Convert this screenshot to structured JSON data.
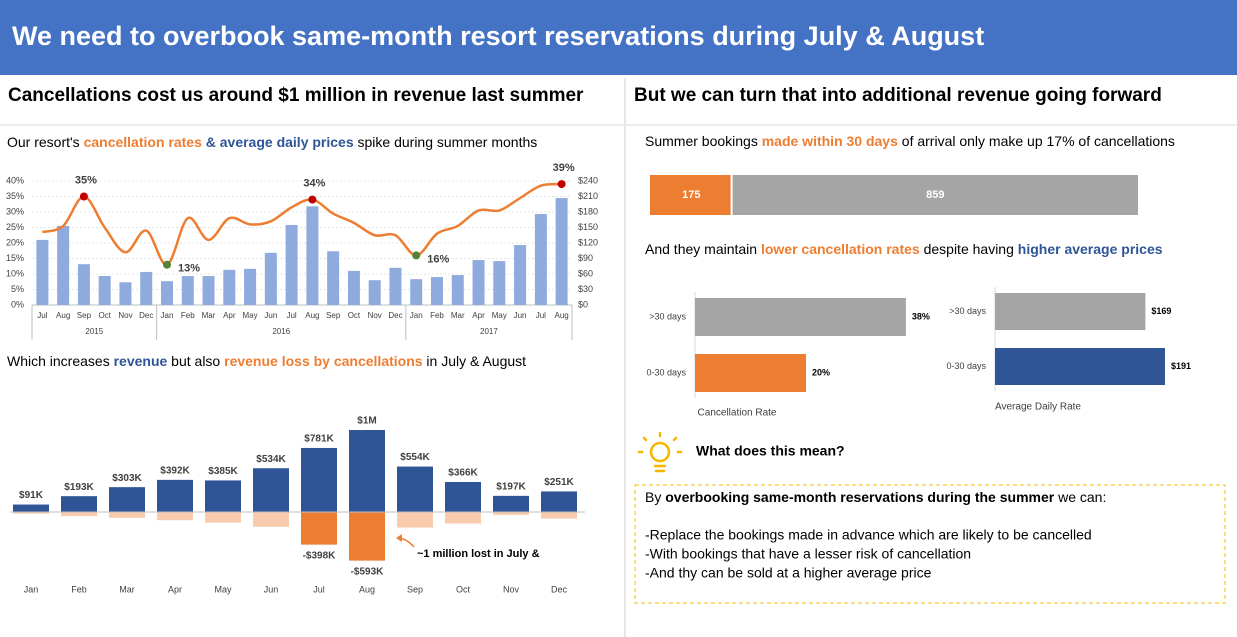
{
  "title": "We need to overbook same-month resort reservations during July & August",
  "left_heading": "Cancellations cost us around $1 million in revenue last summer",
  "right_heading": "But we can turn that into additional revenue going forward",
  "left_text_1": [
    "Our resort's ",
    "cancellation rates",
    " & ",
    "average daily prices",
    " spike during summer months"
  ],
  "left_text_2": [
    "Which increases ",
    "revenue",
    " but also ",
    "revenue loss by cancellations",
    " in July & August"
  ],
  "right_text_1": [
    "Summer bookings ",
    "made within 30 days",
    " of arrival only make up 17% of cancellations"
  ],
  "right_text_2": [
    "And they maintain ",
    "lower cancellation rates",
    " despite having ",
    "higher average prices"
  ],
  "insight_title": "What does this mean?",
  "insight_intro": [
    "By ",
    "overbooking same-month reservations during the summer",
    " we can:"
  ],
  "insight_points": [
    "-Replace the bookings made in advance which are likely to be cancelled",
    "-With bookings that have a lesser risk of cancellation",
    "-And thy can be sold at a higher average price"
  ],
  "chart_data": [
    {
      "type": "combo",
      "categories": [
        "Jul",
        "Aug",
        "Sep",
        "Oct",
        "Nov",
        "Dec",
        "Jan",
        "Feb",
        "Mar",
        "Apr",
        "May",
        "Jun",
        "Jul",
        "Aug",
        "Sep",
        "Oct",
        "Nov",
        "Dec",
        "Jan",
        "Feb",
        "Mar",
        "Apr",
        "May",
        "Jun",
        "Jul",
        "Aug"
      ],
      "year_labels": [
        "2015",
        "2016",
        "2017"
      ],
      "series": [
        {
          "type": "bar",
          "axis": "y2",
          "color": "#8faadc",
          "values": [
            126,
            153,
            79,
            56,
            44,
            64,
            46,
            56,
            56,
            68,
            70,
            101,
            155,
            191,
            104,
            66,
            48,
            72,
            50,
            54,
            58,
            87,
            85,
            116,
            176,
            207
          ]
        },
        {
          "type": "line",
          "color": "#ed7d31",
          "values": [
            23.5,
            25.5,
            35,
            25,
            17,
            24,
            13,
            28,
            21,
            28,
            26,
            27,
            31.5,
            34,
            29.5,
            26.5,
            22.5,
            22.5,
            16,
            23,
            25.5,
            30.5,
            30.5,
            34.5,
            38.5,
            39
          ],
          "value_labels": [
            null,
            null,
            "35%",
            null,
            null,
            null,
            "13%",
            null,
            null,
            null,
            null,
            null,
            null,
            "34%",
            null,
            null,
            null,
            null,
            "16%",
            null,
            null,
            null,
            null,
            null,
            null,
            "39%"
          ],
          "marker_colors": [
            null,
            null,
            "#c00000",
            null,
            null,
            null,
            "#548235",
            null,
            null,
            null,
            null,
            null,
            null,
            "#c00000",
            null,
            null,
            null,
            null,
            "#548235",
            null,
            null,
            null,
            null,
            null,
            null,
            "#c00000"
          ]
        }
      ],
      "ylim": [
        0,
        40
      ],
      "yticks": [
        {
          "value": 0,
          "label": "0%"
        },
        {
          "value": 5,
          "label": "5%"
        },
        {
          "value": 10,
          "label": "10%"
        },
        {
          "value": 15,
          "label": "15%"
        },
        {
          "value": 20,
          "label": "20%"
        },
        {
          "value": 25,
          "label": "25%"
        },
        {
          "value": 30,
          "label": "30%"
        },
        {
          "value": 35,
          "label": "35%"
        },
        {
          "value": 40,
          "label": "40%"
        }
      ],
      "y2lim": [
        0,
        240
      ],
      "y2ticks": [
        {
          "value": 0,
          "label": "$0"
        },
        {
          "value": 30,
          "label": "$30"
        },
        {
          "value": 60,
          "label": "$60"
        },
        {
          "value": 90,
          "label": "$90"
        },
        {
          "value": 120,
          "label": "$120"
        },
        {
          "value": 150,
          "label": "$150"
        },
        {
          "value": 180,
          "label": "$180"
        },
        {
          "value": 210,
          "label": "$210"
        },
        {
          "value": 240,
          "label": "$240"
        }
      ],
      "grid": true
    },
    {
      "type": "bar",
      "categories": [
        "Jan",
        "Feb",
        "Mar",
        "Apr",
        "May",
        "Jun",
        "Jul",
        "Aug",
        "Sep",
        "Oct",
        "Nov",
        "Dec"
      ],
      "series": [
        {
          "color": "#2f5597",
          "values": [
            91,
            193,
            303,
            392,
            385,
            534,
            781,
            1000,
            554,
            366,
            197,
            251
          ],
          "value_labels": [
            "$91K",
            "$193K",
            "$303K",
            "$392K",
            "$385K",
            "$534K",
            "$781K",
            "$1M",
            "$554K",
            "$366K",
            "$197K",
            "$251K"
          ]
        },
        {
          "colors": [
            "#f8cbad",
            "#f8cbad",
            "#f8cbad",
            "#f8cbad",
            "#f8cbad",
            "#f8cbad",
            "#ed7d31",
            "#ed7d31",
            "#f8cbad",
            "#f8cbad",
            "#f8cbad",
            "#f8cbad"
          ],
          "values": [
            -20,
            -50,
            -70,
            -100,
            -130,
            -180,
            -398,
            -593,
            -190,
            -140,
            -35,
            -80
          ],
          "value_labels": [
            null,
            null,
            null,
            null,
            null,
            null,
            "-$398K",
            "-$593K",
            null,
            null,
            null,
            null
          ]
        }
      ],
      "ylim": [
        -700,
        1100
      ],
      "annotation": "~1 million lost in July &"
    },
    {
      "type": "stacked_bar",
      "series": [
        {
          "color": "#ed7d31",
          "values": [
            175
          ]
        },
        {
          "color": "#a5a5a5",
          "values": [
            859
          ]
        }
      ]
    },
    {
      "type": "hbar",
      "categories": [
        ">30 days",
        "0-30 days"
      ],
      "values": [
        38,
        20
      ],
      "value_labels": [
        "38%",
        "20%"
      ],
      "colors": [
        "#a5a5a5",
        "#ed7d31"
      ],
      "xlabel": "Cancellation Rate",
      "xlim": [
        0,
        40
      ]
    },
    {
      "type": "hbar",
      "categories": [
        ">30 days",
        "0-30 days"
      ],
      "values": [
        169,
        191
      ],
      "value_labels": [
        "$169",
        "$191"
      ],
      "colors": [
        "#a5a5a5",
        "#2f5597"
      ],
      "xlabel": "Average Daily Rate",
      "xlim": [
        0,
        200
      ]
    }
  ]
}
